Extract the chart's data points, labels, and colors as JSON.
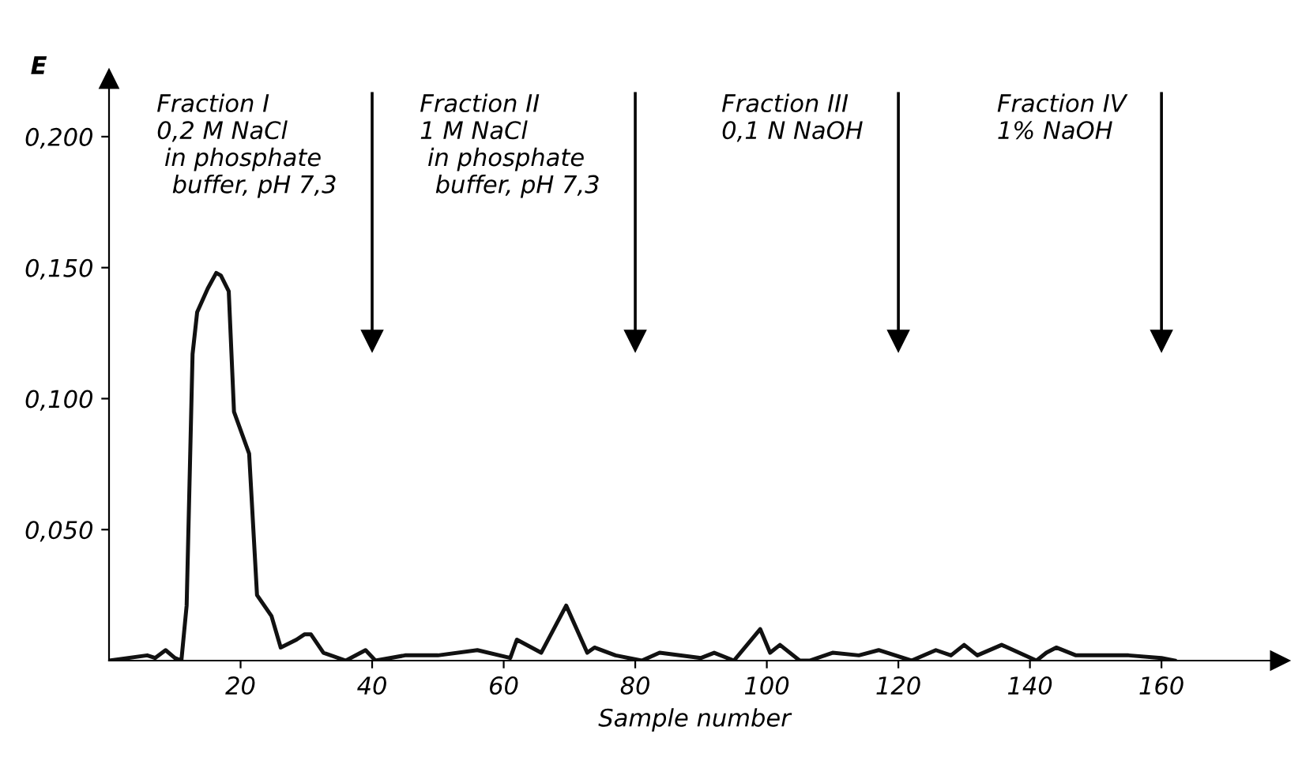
{
  "chart_data": {
    "type": "line",
    "xlabel": "Sample number",
    "ylabel": "E",
    "xlim": [
      0,
      178
    ],
    "ylim": [
      0,
      0.222
    ],
    "xticks": [
      20,
      40,
      60,
      80,
      100,
      120,
      140,
      160
    ],
    "yticks": [
      {
        "value": 0.05,
        "label": "0,050"
      },
      {
        "value": 0.1,
        "label": "0,100"
      },
      {
        "value": 0.15,
        "label": "0,150"
      },
      {
        "value": 0.2,
        "label": "0,200"
      }
    ],
    "grid": false,
    "legend": false,
    "marker": "none",
    "line_style": "solid",
    "series": [
      {
        "color": "#111111",
        "x": [
          0,
          5.8,
          7,
          8.6,
          10,
          11,
          11.8,
          12.7,
          13.4,
          15,
          16.3,
          17,
          18.2,
          19,
          21.3,
          22.5,
          24.7,
          26.1,
          28.5,
          29.7,
          30.7,
          32.6,
          36,
          39,
          40.5,
          45,
          50,
          56,
          61,
          62,
          65.7,
          69.5,
          72.7,
          73.8,
          77,
          81,
          83.7,
          90,
          92,
          95,
          99,
          100.5,
          102,
          105,
          106.5,
          110,
          114,
          117,
          122,
          125.7,
          128,
          130,
          132,
          135.7,
          141,
          142.5,
          144,
          147,
          155,
          160,
          162
        ],
        "values": [
          0,
          0.002,
          0.001,
          0.004,
          0.001,
          0,
          0.021,
          0.117,
          0.133,
          0.142,
          0.148,
          0.147,
          0.141,
          0.095,
          0.079,
          0.025,
          0.017,
          0.005,
          0.008,
          0.01,
          0.01,
          0.003,
          0,
          0.004,
          0,
          0.002,
          0.002,
          0.004,
          0.001,
          0.008,
          0.003,
          0.021,
          0.003,
          0.005,
          0.002,
          0,
          0.003,
          0.001,
          0.003,
          0,
          0.012,
          0.003,
          0.006,
          0,
          0,
          0.003,
          0.002,
          0.004,
          0,
          0.004,
          0.002,
          0.006,
          0.002,
          0.006,
          0,
          0.003,
          0.005,
          0.002,
          0.002,
          0.001,
          0
        ]
      }
    ],
    "ref_lines": [
      {
        "axis": "x",
        "value": 40,
        "label": "Fraction I\n0,2 M NaCl\n in phosphate\n  buffer, pH 7,3"
      },
      {
        "axis": "x",
        "value": 80,
        "label": "Fraction II\n1 M NaCl\n in phosphate\n  buffer, pH 7,3"
      },
      {
        "axis": "x",
        "value": 120,
        "label": "Fraction III\n0,1 N NaOH"
      },
      {
        "axis": "x",
        "value": 160,
        "label": "Fraction IV\n1% NaOH"
      }
    ]
  }
}
